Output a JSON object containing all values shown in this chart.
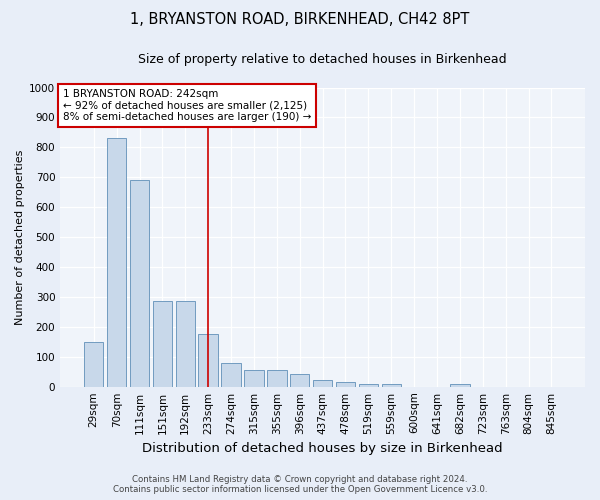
{
  "title": "1, BRYANSTON ROAD, BIRKENHEAD, CH42 8PT",
  "subtitle": "Size of property relative to detached houses in Birkenhead",
  "xlabel": "Distribution of detached houses by size in Birkenhead",
  "ylabel": "Number of detached properties",
  "categories": [
    "29sqm",
    "70sqm",
    "111sqm",
    "151sqm",
    "192sqm",
    "233sqm",
    "274sqm",
    "315sqm",
    "355sqm",
    "396sqm",
    "437sqm",
    "478sqm",
    "519sqm",
    "559sqm",
    "600sqm",
    "641sqm",
    "682sqm",
    "723sqm",
    "763sqm",
    "804sqm",
    "845sqm"
  ],
  "values": [
    150,
    830,
    690,
    285,
    285,
    175,
    78,
    55,
    55,
    42,
    22,
    15,
    10,
    8,
    0,
    0,
    8,
    0,
    0,
    0,
    0
  ],
  "bar_color": "#c8d8ea",
  "bar_edge_color": "#6090b8",
  "vline_x": 5.0,
  "vline_color": "#cc0000",
  "annotation_text": "1 BRYANSTON ROAD: 242sqm\n← 92% of detached houses are smaller (2,125)\n8% of semi-detached houses are larger (190) →",
  "annotation_box_color": "#ffffff",
  "annotation_box_edge": "#cc0000",
  "ylim": [
    0,
    1000
  ],
  "yticks": [
    0,
    100,
    200,
    300,
    400,
    500,
    600,
    700,
    800,
    900,
    1000
  ],
  "footer_line1": "Contains HM Land Registry data © Crown copyright and database right 2024.",
  "footer_line2": "Contains public sector information licensed under the Open Government Licence v3.0.",
  "bg_color": "#e8eef8",
  "plot_bg_color": "#f0f4fa",
  "grid_color": "#ffffff",
  "title_fontsize": 10.5,
  "subtitle_fontsize": 9,
  "ylabel_fontsize": 8,
  "xlabel_fontsize": 9.5,
  "tick_fontsize": 7.5,
  "ann_fontsize": 7.5,
  "footer_fontsize": 6.2
}
